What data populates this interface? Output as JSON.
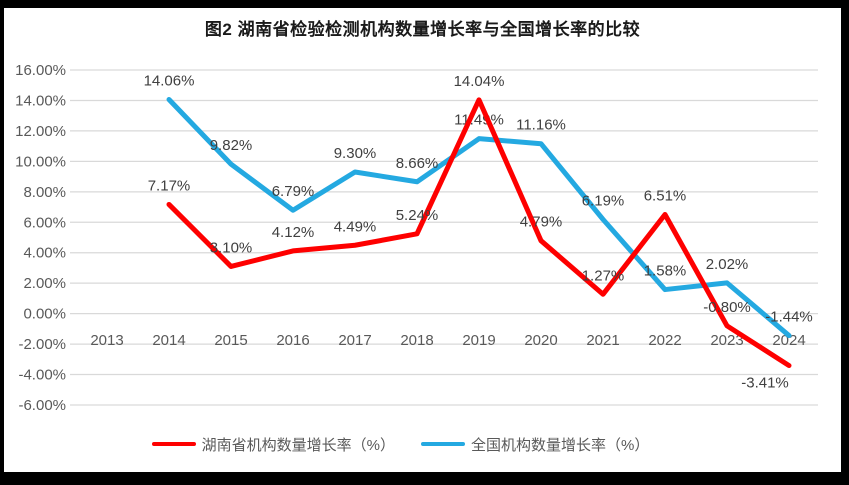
{
  "palette": {
    "hunan_red": "#fe0000",
    "national_blue": "#24a9e1",
    "gridline": "#d9d9d9",
    "axis_text": "#595959",
    "data_label_text": "#404040",
    "title_text": "#1a1a1a",
    "background": "#ffffff",
    "frame": "#000000"
  },
  "chart_data": {
    "type": "line",
    "title": "图2 湖南省检验检测机构数量增长率与全国增长率的比较",
    "categories": [
      "2013",
      "2014",
      "2015",
      "2016",
      "2017",
      "2018",
      "2019",
      "2020",
      "2021",
      "2022",
      "2023",
      "2024"
    ],
    "series": [
      {
        "id": "hunan",
        "name": "湖南省机构数量增长率（%）",
        "color": "#fe0000",
        "values": [
          null,
          7.17,
          3.1,
          4.12,
          4.49,
          5.24,
          14.04,
          4.79,
          1.27,
          6.51,
          -0.8,
          -3.41
        ]
      },
      {
        "id": "national",
        "name": "全国机构数量增长率（%）",
        "color": "#24a9e1",
        "values": [
          null,
          14.06,
          9.82,
          6.79,
          9.3,
          8.66,
          11.49,
          11.16,
          6.19,
          1.58,
          2.02,
          -1.44
        ]
      }
    ],
    "yticks": [
      {
        "label": "16.00%",
        "value": 16
      },
      {
        "label": "14.00%",
        "value": 14
      },
      {
        "label": "12.00%",
        "value": 12
      },
      {
        "label": "10.00%",
        "value": 10
      },
      {
        "label": "8.00%",
        "value": 8
      },
      {
        "label": "6.00%",
        "value": 6
      },
      {
        "label": "4.00%",
        "value": 4
      },
      {
        "label": "2.00%",
        "value": 2
      },
      {
        "label": "0.00%",
        "value": 0
      },
      {
        "label": "-2.00%",
        "value": -2
      },
      {
        "label": "-4.00%",
        "value": -4
      },
      {
        "label": "-6.00%",
        "value": -6
      }
    ],
    "ylim": [
      -6,
      16
    ],
    "ytick_step": 2,
    "grid": "horizontal-only",
    "legend_position": "bottom",
    "data_label_format": "0.00%"
  }
}
